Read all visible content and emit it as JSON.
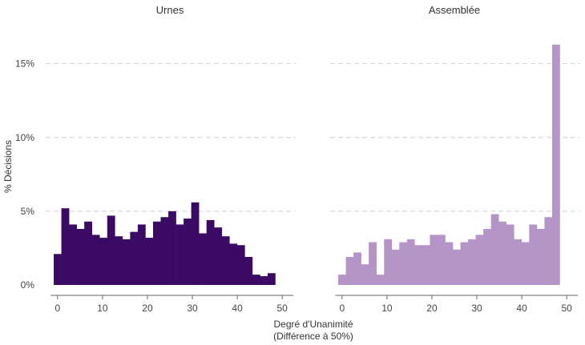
{
  "chart_data": {
    "type": "bar",
    "subtype": "histogram-facets",
    "ylabel": "% Décisions",
    "xlabel_lines": [
      "Degré d'Unanimité",
      "(Différence à 50%)"
    ],
    "ylim": [
      0,
      0.165
    ],
    "y_ticks": [
      0,
      0.05,
      0.1,
      0.15
    ],
    "y_tick_labels": [
      "0%",
      "5%",
      "10%",
      "15%"
    ],
    "xlim": [
      -3,
      53
    ],
    "x_ticks": [
      0,
      10,
      20,
      30,
      40,
      50
    ],
    "x_tick_labels": [
      "0",
      "10",
      "20",
      "30",
      "40",
      "50"
    ],
    "bin_width": 1.7,
    "first_bin_start": -0.85,
    "grid": "horizontal dashed",
    "panels": [
      {
        "title": "Urnes",
        "color": "#3a0a64",
        "values": [
          0.021,
          0.052,
          0.041,
          0.038,
          0.043,
          0.034,
          0.032,
          0.047,
          0.033,
          0.031,
          0.036,
          0.041,
          0.032,
          0.043,
          0.046,
          0.05,
          0.041,
          0.045,
          0.056,
          0.035,
          0.044,
          0.039,
          0.033,
          0.028,
          0.027,
          0.019,
          0.007,
          0.006,
          0.008
        ]
      },
      {
        "title": "Assemblée",
        "color": "#b595c7",
        "values": [
          0.007,
          0.019,
          0.022,
          0.014,
          0.029,
          0.007,
          0.031,
          0.024,
          0.029,
          0.031,
          0.027,
          0.027,
          0.034,
          0.034,
          0.029,
          0.024,
          0.029,
          0.031,
          0.034,
          0.038,
          0.048,
          0.043,
          0.041,
          0.031,
          0.029,
          0.041,
          0.038,
          0.046,
          0.163
        ]
      }
    ]
  }
}
